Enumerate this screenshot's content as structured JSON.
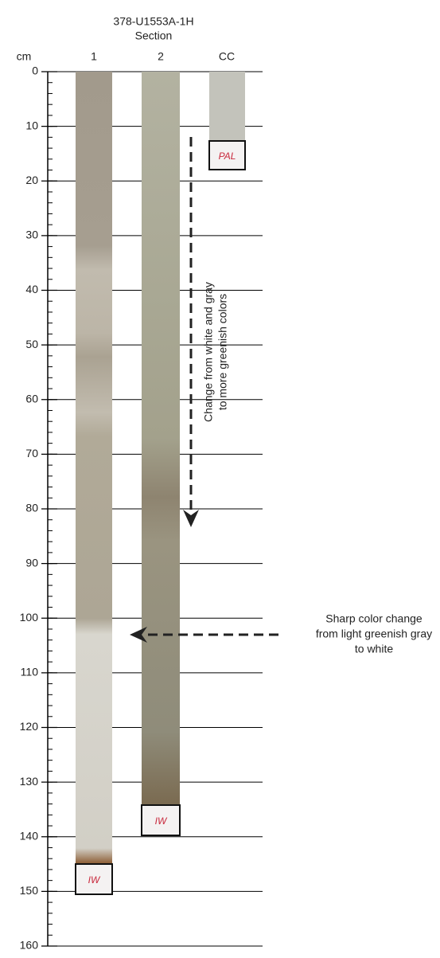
{
  "header": {
    "title": "378-U1553A-1H",
    "subtitle": "Section",
    "unit": "cm"
  },
  "axis": {
    "ylim": [
      0,
      160
    ],
    "yticks": [
      0,
      10,
      20,
      30,
      40,
      50,
      60,
      70,
      80,
      90,
      100,
      110,
      120,
      130,
      140,
      150,
      160
    ]
  },
  "sections": [
    {
      "label": "1",
      "sample": "IW"
    },
    {
      "label": "2",
      "sample": "IW"
    },
    {
      "label": "CC",
      "sample": "PAL"
    }
  ],
  "annotations": [
    {
      "lines": [
        "Change from white and gray",
        "to more greenish colors"
      ]
    },
    {
      "lines": [
        "Sharp color change",
        "from light greenish gray",
        "to white"
      ]
    }
  ]
}
